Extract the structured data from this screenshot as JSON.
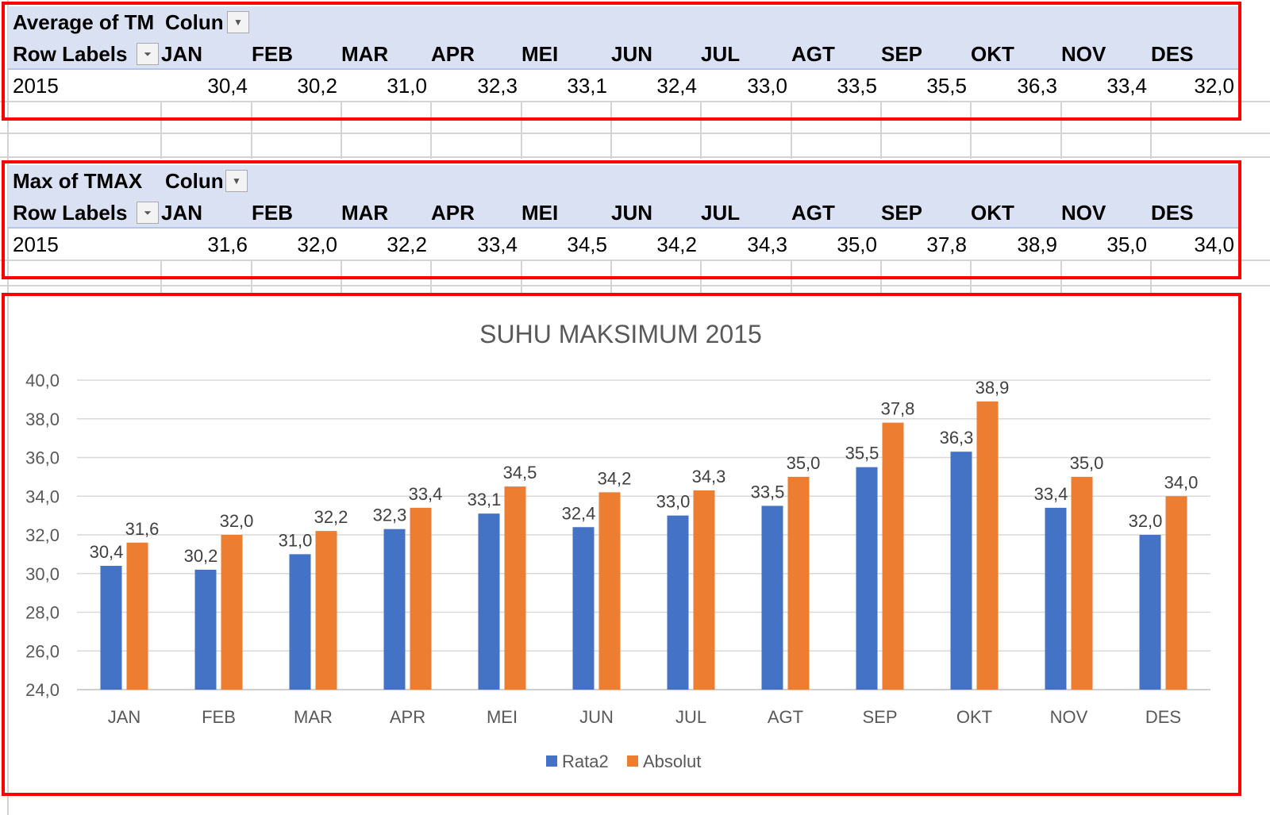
{
  "pivots": [
    {
      "title": "Average of TM",
      "col_label": "Colun",
      "row_label": "Row Labels",
      "year": "2015",
      "months": [
        "JAN",
        "FEB",
        "MAR",
        "APR",
        "MEI",
        "JUN",
        "JUL",
        "AGT",
        "SEP",
        "OKT",
        "NOV",
        "DES"
      ],
      "values": [
        "30,4",
        "30,2",
        "31,0",
        "32,3",
        "33,1",
        "32,4",
        "33,0",
        "33,5",
        "35,5",
        "36,3",
        "33,4",
        "32,0"
      ]
    },
    {
      "title": "Max of TMAX",
      "col_label": "Colun",
      "row_label": "Row Labels",
      "year": "2015",
      "months": [
        "JAN",
        "FEB",
        "MAR",
        "APR",
        "MEI",
        "JUN",
        "JUL",
        "AGT",
        "SEP",
        "OKT",
        "NOV",
        "DES"
      ],
      "values": [
        "31,6",
        "32,0",
        "32,2",
        "33,4",
        "34,5",
        "34,2",
        "34,3",
        "35,0",
        "37,8",
        "38,9",
        "35,0",
        "34,0"
      ]
    }
  ],
  "chart_data": {
    "type": "bar",
    "title": "SUHU MAKSIMUM 2015",
    "categories": [
      "JAN",
      "FEB",
      "MAR",
      "APR",
      "MEI",
      "JUN",
      "JUL",
      "AGT",
      "SEP",
      "OKT",
      "NOV",
      "DES"
    ],
    "series": [
      {
        "name": "Rata2",
        "color": "#4472c4",
        "values": [
          30.4,
          30.2,
          31.0,
          32.3,
          33.1,
          32.4,
          33.0,
          33.5,
          35.5,
          36.3,
          33.4,
          32.0
        ]
      },
      {
        "name": "Absolut",
        "color": "#ed7d31",
        "values": [
          31.6,
          32.0,
          32.2,
          33.4,
          34.5,
          34.2,
          34.3,
          35.0,
          37.8,
          38.9,
          35.0,
          34.0
        ]
      }
    ],
    "ylim": [
      24,
      40
    ],
    "yticks": [
      "24,0",
      "26,0",
      "28,0",
      "30,0",
      "32,0",
      "34,0",
      "36,0",
      "38,0",
      "40,0"
    ],
    "grid": true,
    "legend": "bottom",
    "data_labels": true
  }
}
